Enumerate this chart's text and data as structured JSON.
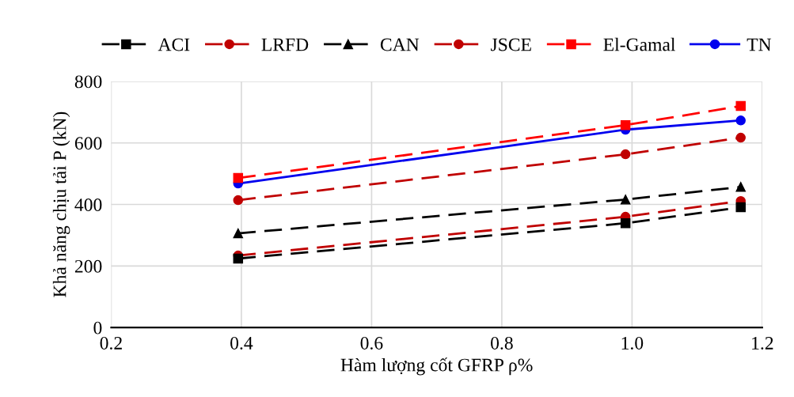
{
  "chart_data": {
    "type": "line",
    "xlabel": "Hàm lượng cốt GFRP ρ%",
    "ylabel": "Khả năng chịu tải P (kN)",
    "x": [
      0.395,
      0.99,
      1.167
    ],
    "series": [
      {
        "name": "ACI",
        "color": "#000000",
        "marker": "square",
        "line_style": "dashed",
        "values": [
          224,
          339,
          391
        ]
      },
      {
        "name": "LRFD",
        "color": "#c00000",
        "marker": "circle",
        "line_style": "dashed",
        "values": [
          234,
          360,
          411
        ]
      },
      {
        "name": "CAN",
        "color": "#000000",
        "marker": "triangle",
        "line_style": "dashed",
        "values": [
          306,
          416,
          457
        ]
      },
      {
        "name": "JSCE",
        "color": "#c00000",
        "marker": "circle",
        "line_style": "dashed",
        "values": [
          414,
          563,
          617
        ]
      },
      {
        "name": "El-Gamal",
        "color": "#ff0000",
        "marker": "square",
        "line_style": "dashed",
        "values": [
          486,
          658,
          720
        ]
      },
      {
        "name": "TN",
        "color": "#0000ee",
        "marker": "circle",
        "line_style": "solid",
        "values": [
          468,
          643,
          673
        ]
      }
    ],
    "xlim": [
      0.2,
      1.2
    ],
    "xticks": [
      {
        "value": 0.2,
        "label": "0.2"
      },
      {
        "value": 0.4,
        "label": "0.4"
      },
      {
        "value": 0.6,
        "label": "0.6"
      },
      {
        "value": 0.8,
        "label": "0.8"
      },
      {
        "value": 1.0,
        "label": "1.0"
      },
      {
        "value": 1.2,
        "label": "1.2"
      }
    ],
    "ylim": [
      0,
      800
    ],
    "yticks": [
      0,
      200,
      400,
      600,
      800
    ],
    "grid": true,
    "legend": "top"
  }
}
